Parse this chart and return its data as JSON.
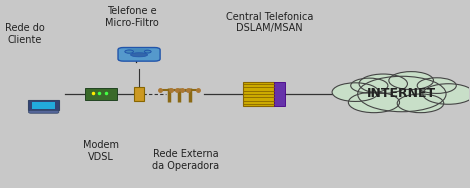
{
  "bg_color": "#c8c8c8",
  "labels": {
    "rede_do_cliente": "Rede do\nCliente",
    "telefone": "Telefone e\nMicro-Filtro",
    "modem": "Modem\nVDSL",
    "rede_externa": "Rede Externa\nda Operadora",
    "central": "Central Telefonica\nDSLAM/MSAN",
    "internet": "INTERNET"
  },
  "text_color": "#222222",
  "line_color": "#333333",
  "cloud_color": "#c8dfc8",
  "cloud_edge": "#444444",
  "pole_color": "#8B6914",
  "dslam_yellow": "#ccaa00",
  "dslam_purple": "#6633aa",
  "modem_color": "#3a6a2a",
  "splitter_color": "#cc9922",
  "computer_screen": "#22aadd",
  "computer_body": "#2244aa",
  "phone_color": "#5599cc"
}
